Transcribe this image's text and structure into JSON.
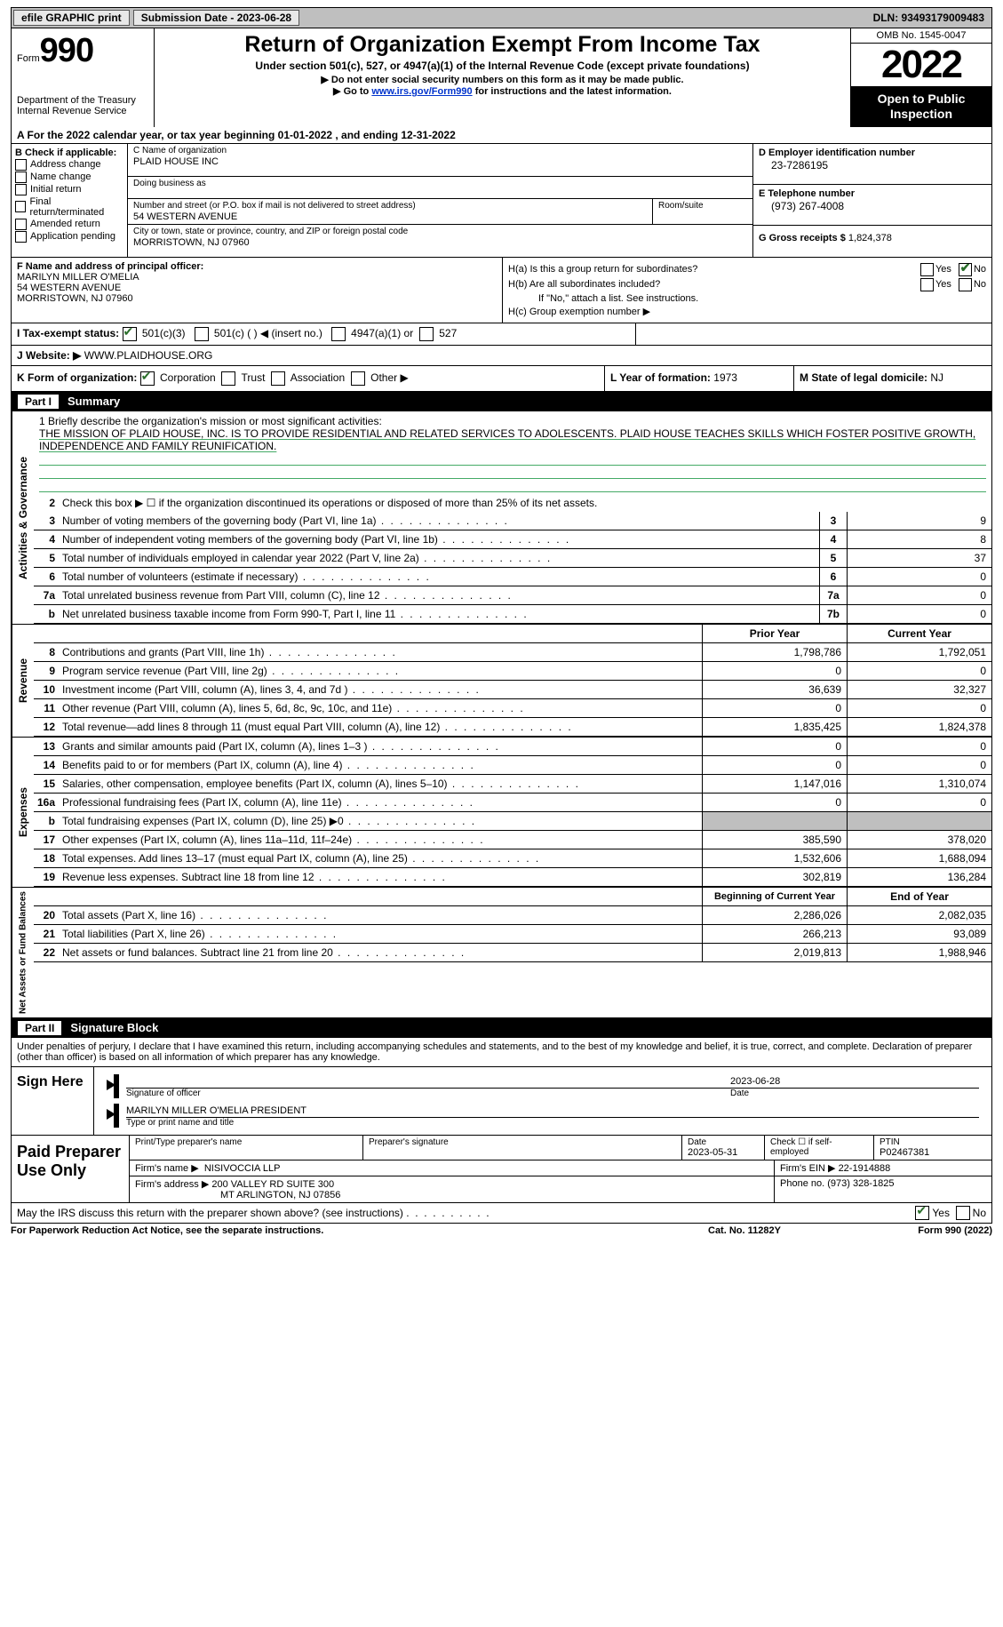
{
  "topbar": {
    "efile": "efile GRAPHIC print",
    "submission_label": "Submission Date - 2023-06-28",
    "dln": "DLN: 93493179009483"
  },
  "header": {
    "form_label": "Form",
    "form_num": "990",
    "dept": "Department of the Treasury\nInternal Revenue Service",
    "title": "Return of Organization Exempt From Income Tax",
    "sub1": "Under section 501(c), 527, or 4947(a)(1) of the Internal Revenue Code (except private foundations)",
    "sub2": "▶ Do not enter social security numbers on this form as it may be made public.",
    "sub3_pre": "▶ Go to ",
    "sub3_link": "www.irs.gov/Form990",
    "sub3_post": " for instructions and the latest information.",
    "omb": "OMB No. 1545-0047",
    "year": "2022",
    "open": "Open to Public Inspection"
  },
  "line_a": "A For the 2022 calendar year, or tax year beginning 01-01-2022    , and ending 12-31-2022",
  "box_b": {
    "hdr": "B Check if applicable:",
    "opts": [
      "Address change",
      "Name change",
      "Initial return",
      "Final return/terminated",
      "Amended return",
      "Application pending"
    ]
  },
  "box_c": {
    "name_lbl": "C Name of organization",
    "name": "PLAID HOUSE INC",
    "dba_lbl": "Doing business as",
    "dba": "",
    "addr_lbl": "Number and street (or P.O. box if mail is not delivered to street address)",
    "room_lbl": "Room/suite",
    "addr": "54 WESTERN AVENUE",
    "city_lbl": "City or town, state or province, country, and ZIP or foreign postal code",
    "city": "MORRISTOWN, NJ  07960"
  },
  "box_d": {
    "ein_lbl": "D Employer identification number",
    "ein": "23-7286195",
    "tel_lbl": "E Telephone number",
    "tel": "(973) 267-4008",
    "gross_lbl": "G Gross receipts $",
    "gross": "1,824,378"
  },
  "box_f": {
    "lbl": "F  Name and address of principal officer:",
    "name": "MARILYN MILLER O'MELIA",
    "addr1": "54 WESTERN AVENUE",
    "addr2": "MORRISTOWN, NJ  07960"
  },
  "box_h": {
    "ha": "H(a)  Is this a group return for subordinates?",
    "hb": "H(b)  Are all subordinates included?",
    "hb_note": "If \"No,\" attach a list. See instructions.",
    "hc": "H(c)  Group exemption number ▶"
  },
  "row_i": {
    "lbl": "I   Tax-exempt status:",
    "o1": "501(c)(3)",
    "o2": "501(c) (  ) ◀ (insert no.)",
    "o3": "4947(a)(1) or",
    "o4": "527"
  },
  "row_j": {
    "lbl": "J  Website: ▶",
    "val": " WWW.PLAIDHOUSE.ORG"
  },
  "row_k": {
    "lbl": "K Form of organization:",
    "opts": [
      "Corporation",
      "Trust",
      "Association",
      "Other ▶"
    ]
  },
  "row_l": {
    "lbl": "L Year of formation:",
    "val": "1973"
  },
  "row_m": {
    "lbl": "M State of legal domicile:",
    "val": "NJ"
  },
  "part1": {
    "tag": "Part I",
    "title": "Summary"
  },
  "mission": {
    "lbl": "1  Briefly describe the organization's mission or most significant activities:",
    "txt": "THE MISSION OF PLAID HOUSE, INC. IS TO PROVIDE RESIDENTIAL AND RELATED SERVICES TO ADOLESCENTS. PLAID HOUSE TEACHES SKILLS WHICH FOSTER POSITIVE GROWTH, INDEPENDENCE AND FAMILY REUNIFICATION."
  },
  "line2": "Check this box ▶ ☐  if the organization discontinued its operations or disposed of more than 25% of its net assets.",
  "sec_labels": {
    "act": "Activities & Governance",
    "rev": "Revenue",
    "exp": "Expenses",
    "net": "Net Assets or Fund Balances"
  },
  "col_hdrs": {
    "prior": "Prior Year",
    "current": "Current Year",
    "begin": "Beginning of Current Year",
    "end": "End of Year"
  },
  "lines_gov": [
    {
      "n": "3",
      "d": "Number of voting members of the governing body (Part VI, line 1a)",
      "b": "3",
      "v": "9"
    },
    {
      "n": "4",
      "d": "Number of independent voting members of the governing body (Part VI, line 1b)",
      "b": "4",
      "v": "8"
    },
    {
      "n": "5",
      "d": "Total number of individuals employed in calendar year 2022 (Part V, line 2a)",
      "b": "5",
      "v": "37"
    },
    {
      "n": "6",
      "d": "Total number of volunteers (estimate if necessary)",
      "b": "6",
      "v": "0"
    },
    {
      "n": "7a",
      "d": "Total unrelated business revenue from Part VIII, column (C), line 12",
      "b": "7a",
      "v": "0"
    },
    {
      "n": "b",
      "d": "Net unrelated business taxable income from Form 990-T, Part I, line 11",
      "b": "7b",
      "v": "0"
    }
  ],
  "lines_rev": [
    {
      "n": "8",
      "d": "Contributions and grants (Part VIII, line 1h)",
      "p": "1,798,786",
      "c": "1,792,051"
    },
    {
      "n": "9",
      "d": "Program service revenue (Part VIII, line 2g)",
      "p": "0",
      "c": "0"
    },
    {
      "n": "10",
      "d": "Investment income (Part VIII, column (A), lines 3, 4, and 7d )",
      "p": "36,639",
      "c": "32,327"
    },
    {
      "n": "11",
      "d": "Other revenue (Part VIII, column (A), lines 5, 6d, 8c, 9c, 10c, and 11e)",
      "p": "0",
      "c": "0"
    },
    {
      "n": "12",
      "d": "Total revenue—add lines 8 through 11 (must equal Part VIII, column (A), line 12)",
      "p": "1,835,425",
      "c": "1,824,378"
    }
  ],
  "lines_exp": [
    {
      "n": "13",
      "d": "Grants and similar amounts paid (Part IX, column (A), lines 1–3 )",
      "p": "0",
      "c": "0"
    },
    {
      "n": "14",
      "d": "Benefits paid to or for members (Part IX, column (A), line 4)",
      "p": "0",
      "c": "0"
    },
    {
      "n": "15",
      "d": "Salaries, other compensation, employee benefits (Part IX, column (A), lines 5–10)",
      "p": "1,147,016",
      "c": "1,310,074"
    },
    {
      "n": "16a",
      "d": "Professional fundraising fees (Part IX, column (A), line 11e)",
      "p": "0",
      "c": "0"
    },
    {
      "n": "b",
      "d": "Total fundraising expenses (Part IX, column (D), line 25) ▶0",
      "p": "shade",
      "c": "shade"
    },
    {
      "n": "17",
      "d": "Other expenses (Part IX, column (A), lines 11a–11d, 11f–24e)",
      "p": "385,590",
      "c": "378,020"
    },
    {
      "n": "18",
      "d": "Total expenses. Add lines 13–17 (must equal Part IX, column (A), line 25)",
      "p": "1,532,606",
      "c": "1,688,094"
    },
    {
      "n": "19",
      "d": "Revenue less expenses. Subtract line 18 from line 12",
      "p": "302,819",
      "c": "136,284"
    }
  ],
  "lines_net": [
    {
      "n": "20",
      "d": "Total assets (Part X, line 16)",
      "p": "2,286,026",
      "c": "2,082,035"
    },
    {
      "n": "21",
      "d": "Total liabilities (Part X, line 26)",
      "p": "266,213",
      "c": "93,089"
    },
    {
      "n": "22",
      "d": "Net assets or fund balances. Subtract line 21 from line 20",
      "p": "2,019,813",
      "c": "1,988,946"
    }
  ],
  "part2": {
    "tag": "Part II",
    "title": "Signature Block"
  },
  "sig": {
    "decl": "Under penalties of perjury, I declare that I have examined this return, including accompanying schedules and statements, and to the best of my knowledge and belief, it is true, correct, and complete. Declaration of preparer (other than officer) is based on all information of which preparer has any knowledge.",
    "sign_here": "Sign Here",
    "sig_of_officer": "Signature of officer",
    "date_lbl": "Date",
    "sig_date": "2023-06-28",
    "officer_name": "MARILYN MILLER O'MELIA  PRESIDENT",
    "type_name": "Type or print name and title"
  },
  "paid": {
    "lbl": "Paid Preparer Use Only",
    "r1": {
      "c1_lbl": "Print/Type preparer's name",
      "c1": "",
      "c2_lbl": "Preparer's signature",
      "c2": "",
      "c3_lbl": "Date",
      "c3": "2023-05-31",
      "c4_lbl": "Check ☐ if self-employed",
      "c4": "",
      "c5_lbl": "PTIN",
      "c5": "P02467381"
    },
    "r2": {
      "lbl": "Firm's name    ▶",
      "val": "NISIVOCCIA LLP",
      "ein_lbl": "Firm's EIN ▶",
      "ein": "22-1914888"
    },
    "r3": {
      "lbl": "Firm's address ▶",
      "val1": "200 VALLEY RD SUITE 300",
      "val2": "MT ARLINGTON, NJ  07856",
      "ph_lbl": "Phone no.",
      "ph": "(973) 328-1825"
    }
  },
  "discuss": "May the IRS discuss this return with the preparer shown above? (see instructions)",
  "footer": {
    "l": "For Paperwork Reduction Act Notice, see the separate instructions.",
    "c": "Cat. No. 11282Y",
    "r": "Form 990 (2022)"
  }
}
